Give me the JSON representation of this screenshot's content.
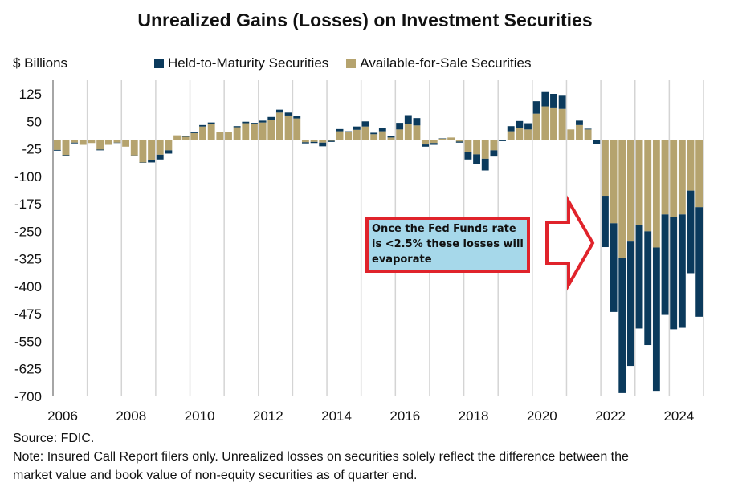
{
  "chart_data": {
    "type": "bar",
    "stacked": true,
    "title": "Unrealized Gains (Losses) on Investment Securities",
    "ylabel": "$ Billions",
    "xlabel": "",
    "ylim": [
      -700,
      125
    ],
    "yticks": [
      125,
      50,
      -25,
      -100,
      -175,
      -250,
      -325,
      -400,
      -475,
      -550,
      -625,
      -700
    ],
    "xticks": [
      "2006",
      "2008",
      "2010",
      "2012",
      "2014",
      "2016",
      "2018",
      "2020",
      "2022",
      "2024"
    ],
    "start_year": 2006,
    "frequency": "quarterly",
    "grid": "vertical year lines",
    "legend_position": "top",
    "series": [
      {
        "name": "Held-to-Maturity Securities",
        "color": "#0b3a5c",
        "values": [
          -2,
          -3,
          -2,
          0,
          0,
          -2,
          0,
          -1,
          0,
          -1,
          -1,
          -7,
          -13,
          -9,
          0,
          2,
          4,
          4,
          5,
          2,
          1,
          3,
          4,
          3,
          5,
          7,
          8,
          8,
          6,
          -3,
          -3,
          -10,
          -3,
          6,
          3,
          9,
          14,
          4,
          10,
          4,
          18,
          23,
          20,
          -6,
          -5,
          1,
          0,
          -3,
          -20,
          -26,
          -32,
          -17,
          -2,
          14,
          20,
          17,
          34,
          39,
          37,
          36,
          0,
          12,
          2,
          -10,
          -140,
          -242,
          -368,
          -339,
          -283,
          -310,
          -391,
          -274,
          -305,
          -309,
          -225,
          -299
        ]
      },
      {
        "name": "Available-for-Sale Securities",
        "color": "#b5a36e",
        "values": [
          -28,
          -42,
          -8,
          -14,
          -9,
          -27,
          -14,
          -8,
          -19,
          -43,
          -62,
          -55,
          -41,
          -29,
          12,
          8,
          18,
          36,
          42,
          20,
          20,
          34,
          45,
          43,
          47,
          55,
          74,
          66,
          58,
          -7,
          -6,
          -8,
          -3,
          23,
          20,
          27,
          36,
          15,
          23,
          6,
          28,
          44,
          39,
          -13,
          -9,
          3,
          6,
          -5,
          -34,
          -40,
          -52,
          -29,
          -2,
          23,
          31,
          28,
          71,
          91,
          88,
          84,
          28,
          40,
          28,
          -1,
          -153,
          -228,
          -323,
          -278,
          -232,
          -250,
          -294,
          -204,
          -212,
          -204,
          -139,
          -184
        ]
      }
    ],
    "annotation": {
      "text": "Once the Fed Funds rate is <2.5% these losses will evaporate",
      "fill": "#a6d8ea",
      "border": "#e0232b"
    }
  },
  "notes": {
    "source": "Source: FDIC.",
    "note_line1": "Note: Insured Call Report filers only. Unrealized losses on securities solely reflect the difference between the",
    "note_line2": "market value and book value of non-equity securities as of quarter end."
  }
}
